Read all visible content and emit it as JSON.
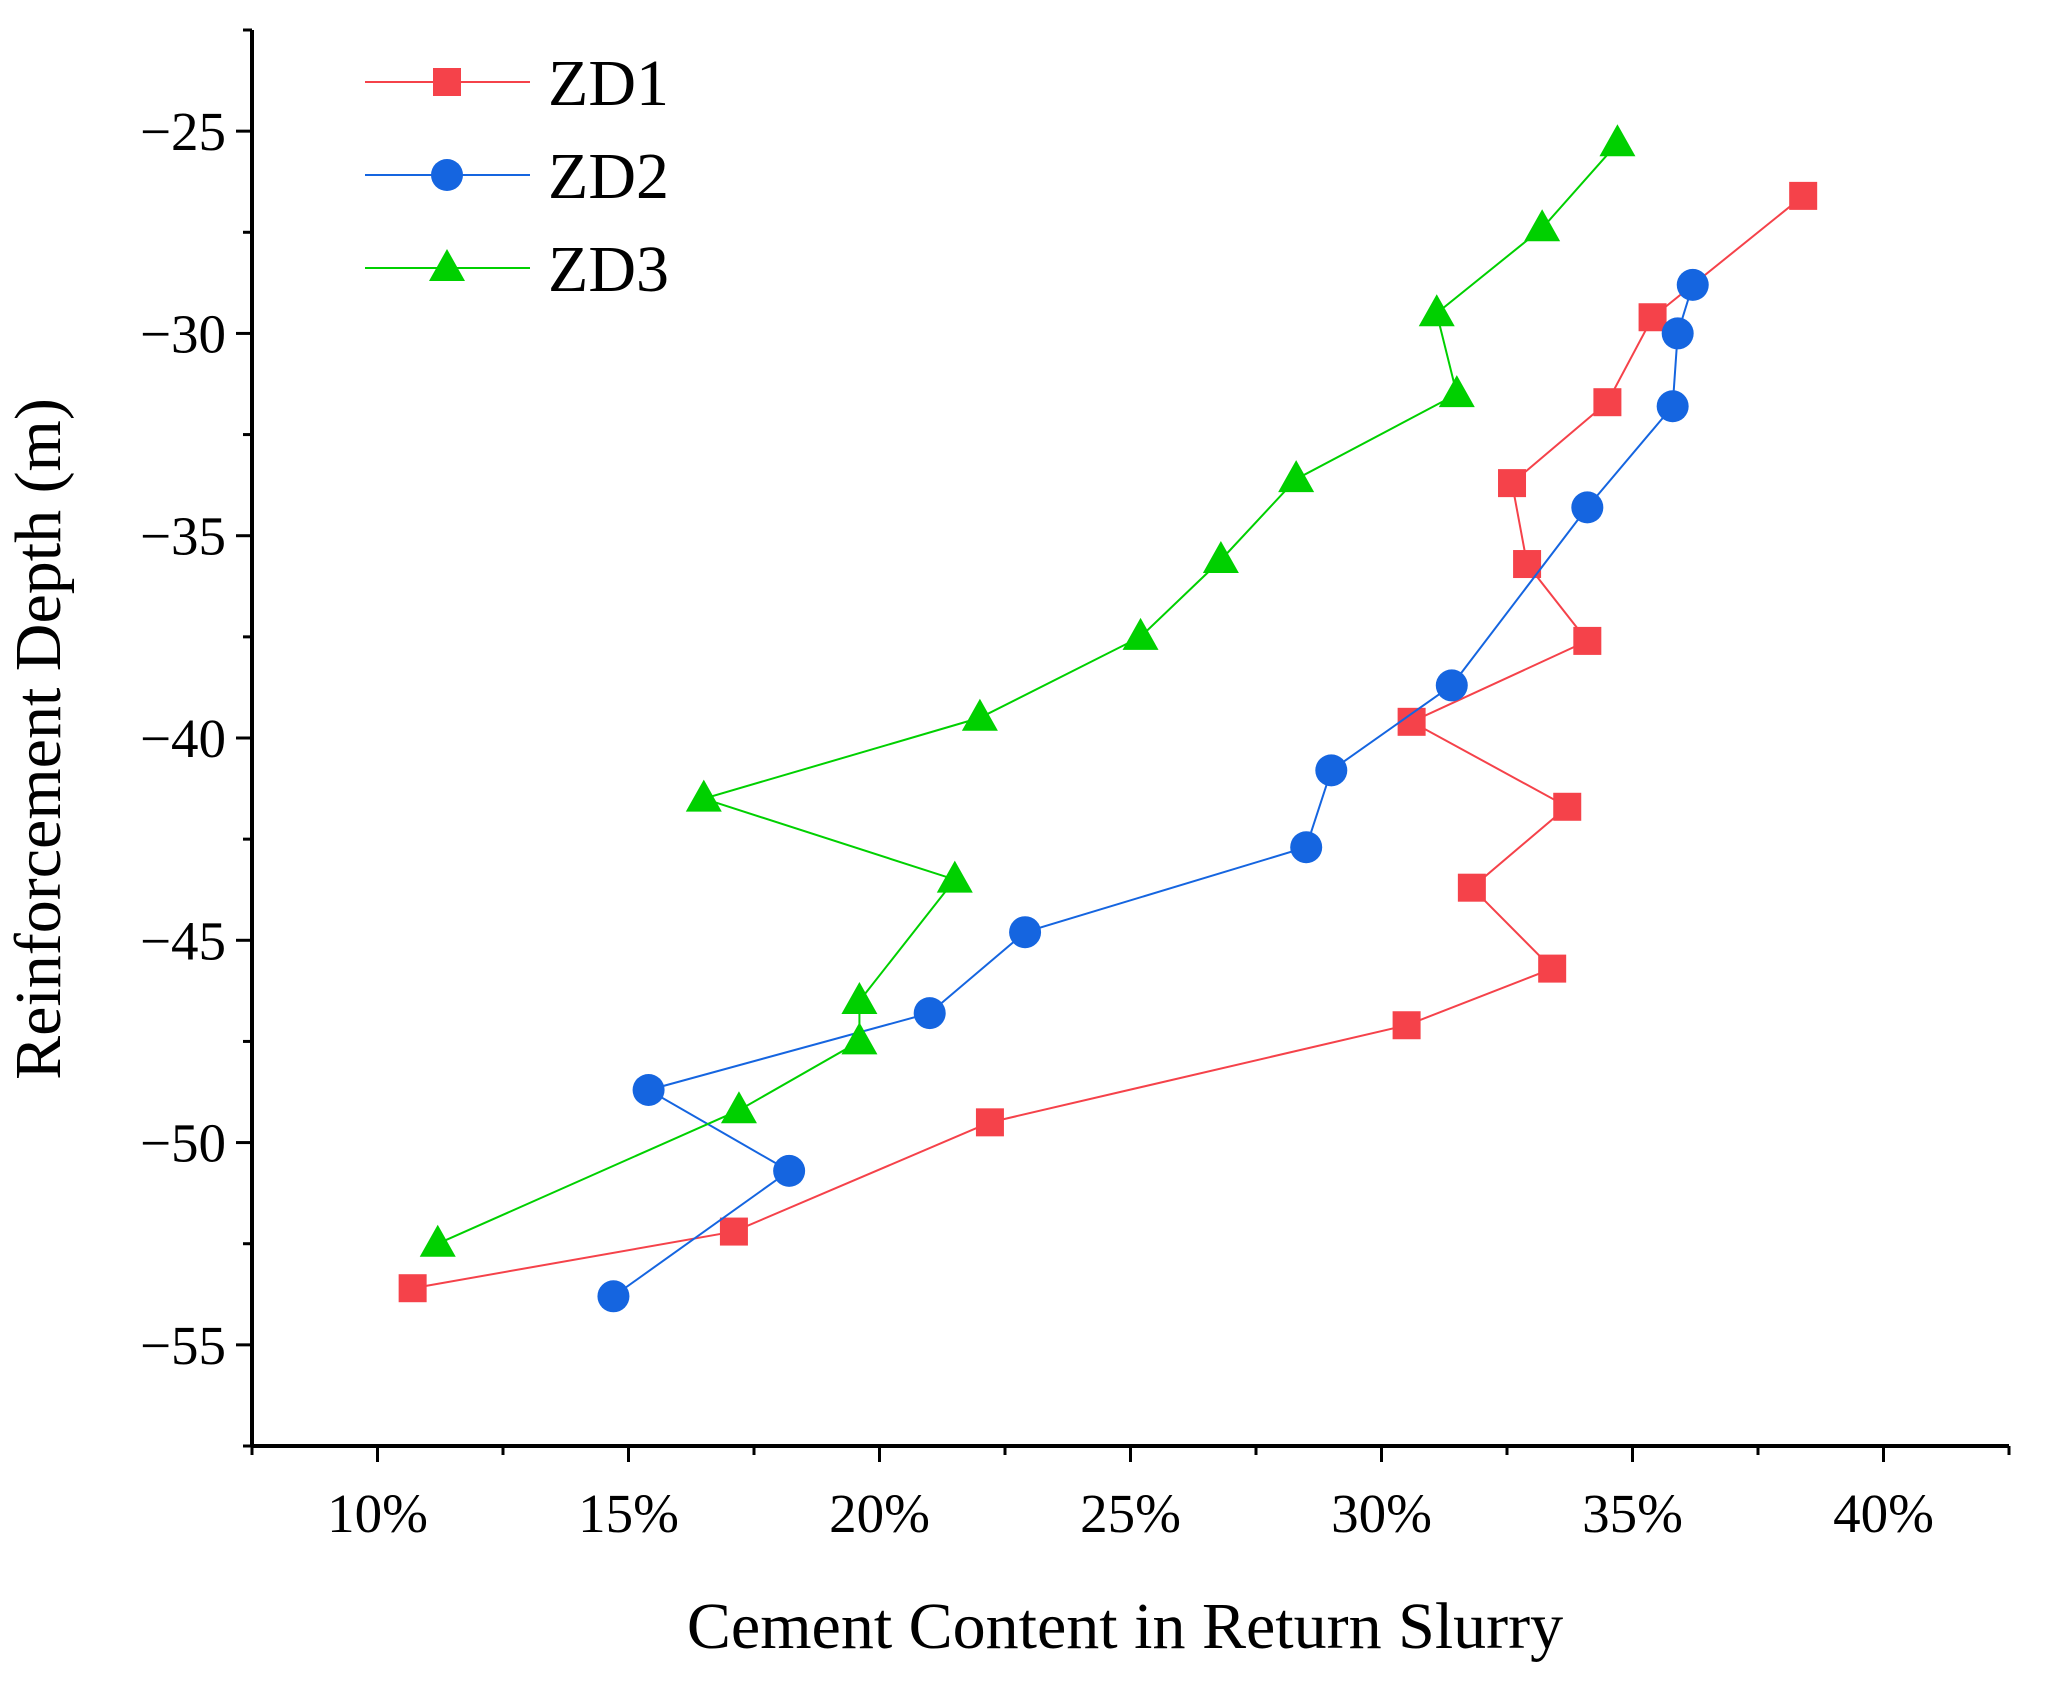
{
  "chart_data": {
    "type": "line",
    "xlabel": "Cement Content in Return Slurry",
    "ylabel": "Reinforcement Depth (m)",
    "xlim": [
      7.5,
      42.5
    ],
    "ylim": [
      -57.5,
      -22.5
    ],
    "x_ticks": [
      10,
      15,
      20,
      25,
      30,
      35,
      40
    ],
    "x_tick_labels": [
      "10%",
      "15%",
      "20%",
      "25%",
      "30%",
      "35%",
      "40%"
    ],
    "y_ticks": [
      -25,
      -30,
      -35,
      -40,
      -45,
      -50,
      -55
    ],
    "y_tick_labels": [
      "−25",
      "−30",
      "−35",
      "−40",
      "−45",
      "−50",
      "−55"
    ],
    "legend_position": "top-left",
    "series": [
      {
        "name": "ZD1",
        "color": "#f5424a",
        "marker": "square",
        "points": [
          [
            38.4,
            -26.6
          ],
          [
            35.4,
            -29.6
          ],
          [
            34.5,
            -31.7
          ],
          [
            32.6,
            -33.7
          ],
          [
            32.9,
            -35.7
          ],
          [
            34.1,
            -37.6
          ],
          [
            30.6,
            -39.6
          ],
          [
            33.7,
            -41.7
          ],
          [
            31.8,
            -43.7
          ],
          [
            33.4,
            -45.7
          ],
          [
            30.5,
            -47.1
          ],
          [
            22.2,
            -49.5
          ],
          [
            17.1,
            -52.2
          ],
          [
            10.7,
            -53.6
          ]
        ]
      },
      {
        "name": "ZD2",
        "color": "#1565e0",
        "marker": "circle",
        "points": [
          [
            36.2,
            -28.8
          ],
          [
            35.9,
            -30.0
          ],
          [
            35.8,
            -31.8
          ],
          [
            34.1,
            -34.3
          ],
          [
            31.4,
            -38.7
          ],
          [
            29.0,
            -40.8
          ],
          [
            28.5,
            -42.7
          ],
          [
            22.9,
            -44.8
          ],
          [
            21.0,
            -46.8
          ],
          [
            15.4,
            -48.7
          ],
          [
            18.2,
            -50.7
          ],
          [
            14.7,
            -53.8
          ]
        ]
      },
      {
        "name": "ZD3",
        "color": "#00d000",
        "marker": "triangle",
        "points": [
          [
            34.7,
            -25.3
          ],
          [
            33.2,
            -27.4
          ],
          [
            31.1,
            -29.5
          ],
          [
            31.5,
            -31.5
          ],
          [
            28.3,
            -33.6
          ],
          [
            26.8,
            -35.6
          ],
          [
            25.2,
            -37.5
          ],
          [
            22.0,
            -39.5
          ],
          [
            16.5,
            -41.5
          ],
          [
            21.5,
            -43.5
          ],
          [
            19.6,
            -46.5
          ],
          [
            19.6,
            -47.5
          ],
          [
            17.2,
            -49.2
          ],
          [
            11.2,
            -52.5
          ]
        ]
      }
    ]
  }
}
